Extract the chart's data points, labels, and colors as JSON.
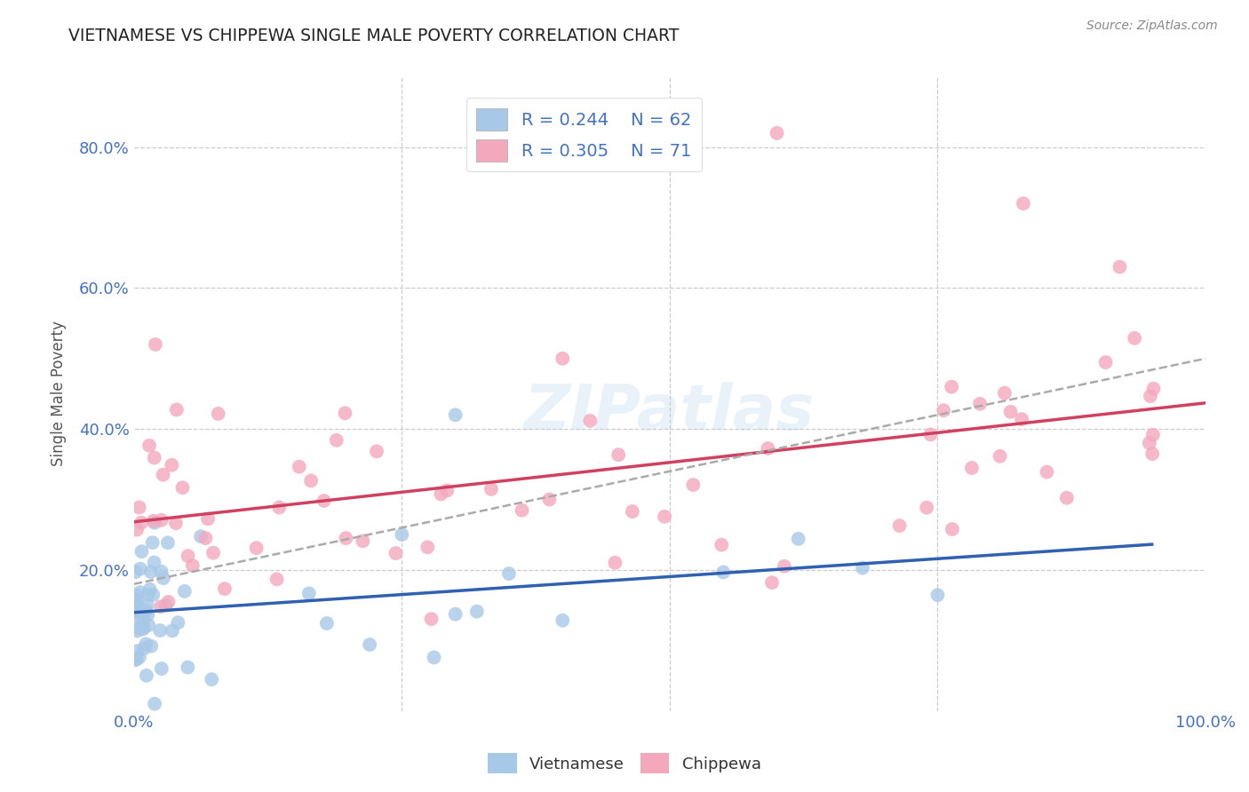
{
  "title": "VIETNAMESE VS CHIPPEWA SINGLE MALE POVERTY CORRELATION CHART",
  "source": "Source: ZipAtlas.com",
  "ylabel": "Single Male Poverty",
  "xlim": [
    0.0,
    1.0
  ],
  "ylim": [
    0.0,
    0.9
  ],
  "xticks": [
    0.0,
    0.25,
    0.5,
    0.75,
    1.0
  ],
  "xtick_labels": [
    "0.0%",
    "",
    "",
    "",
    "100.0%"
  ],
  "yticks": [
    0.2,
    0.4,
    0.6,
    0.8
  ],
  "ytick_labels": [
    "20.0%",
    "40.0%",
    "60.0%",
    "80.0%"
  ],
  "gridline_color": "#cccccc",
  "background_color": "#ffffff",
  "vietnamese_color": "#a8c8e8",
  "chippewa_color": "#f4a8bc",
  "vietnamese_line_color": "#3060b0",
  "chippewa_line_color": "#d04060",
  "trendline_color": "#aaaaaa",
  "R_vietnamese": 0.244,
  "N_vietnamese": 62,
  "R_chippewa": 0.305,
  "N_chippewa": 71,
  "legend_labels": [
    "Vietnamese",
    "Chippewa"
  ],
  "watermark": "ZIPatlas",
  "viet_intercept": 0.13,
  "viet_slope": 0.14,
  "chip_intercept": 0.27,
  "chip_slope": 0.12,
  "grey_intercept": 0.18,
  "grey_slope": 0.32
}
